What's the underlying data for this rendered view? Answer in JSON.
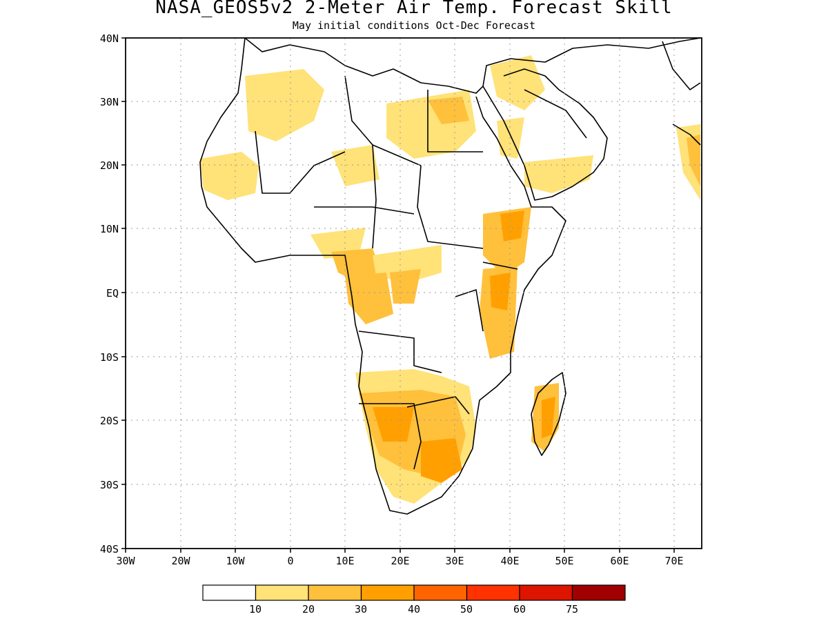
{
  "title": "NASA_GEOS5v2 2-Meter Air Temp. Forecast Skill",
  "subtitle": "May initial conditions  Oct-Dec Forecast",
  "axes": {
    "y_ticks": [
      "40N",
      "30N",
      "20N",
      "10N",
      "EQ",
      "10S",
      "20S",
      "30S",
      "40S"
    ],
    "x_ticks": [
      "30W",
      "20W",
      "10W",
      "0",
      "10E",
      "20E",
      "30E",
      "40E",
      "50E",
      "60E",
      "70E"
    ]
  },
  "legend": {
    "colors": [
      "#ffffff",
      "#ffe278",
      "#ffc03c",
      "#ffa000",
      "#ff6400",
      "#ff3200",
      "#dc1400",
      "#a00000"
    ],
    "labels": [
      "10",
      "20",
      "30",
      "40",
      "50",
      "60",
      "75"
    ]
  },
  "map": {
    "region": "Africa and Arabian Peninsula",
    "lon_range": [
      -30,
      75
    ],
    "lat_range": [
      -40,
      40
    ],
    "grid": "dotted"
  }
}
